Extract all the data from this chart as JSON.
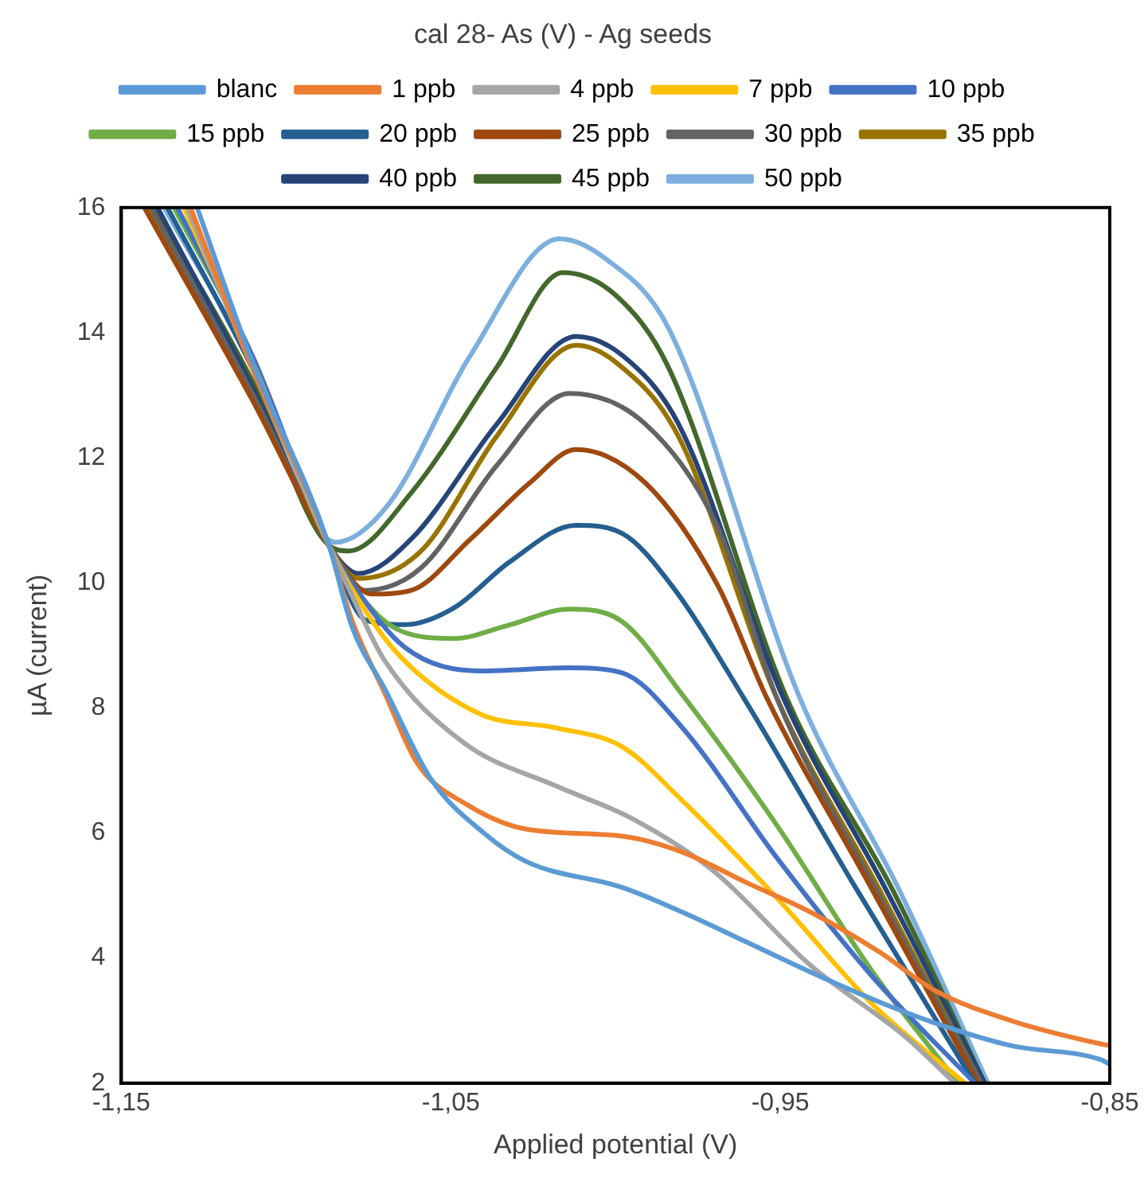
{
  "chart_data": {
    "type": "line",
    "title": "cal 28- As (V) - Ag seeds",
    "xlabel": "Applied potential (V)",
    "ylabel": "µA (current)",
    "xlim": [
      -1.15,
      -0.85
    ],
    "xticks": [
      {
        "value": -1.15,
        "label": "-1,15"
      },
      {
        "value": -1.05,
        "label": "-1,05"
      },
      {
        "value": -0.95,
        "label": "-0,95"
      },
      {
        "value": -0.85,
        "label": "-0,85"
      }
    ],
    "ylim": [
      2,
      16
    ],
    "yticks": [
      2,
      4,
      6,
      8,
      10,
      12,
      14,
      16
    ],
    "grid": false,
    "legend": "top",
    "marker": "none",
    "line_style": "solid",
    "series": [
      {
        "name": "blanc",
        "color": "#5b9bd5",
        "x": [
          -1.127,
          -1.11,
          -1.087,
          -1.08,
          -1.07,
          -1.056,
          -1.04,
          -1.027,
          -0.998,
          -0.98,
          -0.96,
          -0.941,
          -0.92,
          -0.903,
          -0.88,
          -0.853,
          -0.85
        ],
        "values": [
          16,
          13.5,
          10.6,
          9.3,
          8.3,
          6.86,
          6.0,
          5.54,
          5.13,
          4.74,
          4.25,
          3.78,
          3.3,
          2.96,
          2.6,
          2.38,
          2.3
        ]
      },
      {
        "name": "1 ppb",
        "color": "#ed7d31",
        "x": [
          -1.129,
          -1.11,
          -1.087,
          -1.08,
          -1.07,
          -1.06,
          -1.045,
          -1.027,
          -0.998,
          -0.98,
          -0.96,
          -0.941,
          -0.92,
          -0.903,
          -0.88,
          -0.853,
          -0.85
        ],
        "values": [
          16,
          13.4,
          10.6,
          9.4,
          8.23,
          7.1,
          6.45,
          6.06,
          5.95,
          5.7,
          5.2,
          4.74,
          4.1,
          3.48,
          3.0,
          2.63,
          2.6
        ]
      },
      {
        "name": "4 ppb",
        "color": "#a5a5a5",
        "x": [
          -1.13,
          -1.11,
          -1.087,
          -1.08,
          -1.07,
          -1.046,
          -1.018,
          -0.995,
          -0.97,
          -0.941,
          -0.912,
          -0.897
        ],
        "values": [
          16,
          13.4,
          10.6,
          9.8,
          8.75,
          7.44,
          6.75,
          6.23,
          5.38,
          3.89,
          2.74,
          2
        ]
      },
      {
        "name": "7 ppb",
        "color": "#ffc000",
        "x": [
          -1.131,
          -1.11,
          -1.087,
          -1.08,
          -1.066,
          -1.041,
          -1.018,
          -0.998,
          -0.98,
          -0.951,
          -0.922,
          -0.894
        ],
        "values": [
          16,
          13.5,
          10.6,
          9.9,
          8.86,
          7.9,
          7.68,
          7.38,
          6.53,
          4.96,
          3.26,
          2
        ]
      },
      {
        "name": "10 ppb",
        "color": "#4472c4",
        "x": [
          -1.133,
          -1.11,
          -1.087,
          -1.08,
          -1.064,
          -1.041,
          -1.014,
          -0.998,
          -0.98,
          -0.951,
          -0.922,
          -0.891
        ],
        "values": [
          16,
          13.6,
          10.6,
          10.0,
          8.97,
          8.59,
          8.64,
          8.56,
          7.7,
          5.6,
          3.7,
          2
        ]
      },
      {
        "name": "15 ppb",
        "color": "#70ad47",
        "x": [
          -1.134,
          -1.11,
          -1.087,
          -1.066,
          -1.049,
          -1.032,
          -1.014,
          -0.998,
          -0.98,
          -0.951,
          -0.922,
          -0.896
        ],
        "values": [
          16,
          13.6,
          10.6,
          9.25,
          9.11,
          9.33,
          9.58,
          9.38,
          8.23,
          6.12,
          3.78,
          2
        ]
      },
      {
        "name": "20 ppb",
        "color": "#255e91",
        "x": [
          -1.136,
          -1.11,
          -1.087,
          -1.076,
          -1.064,
          -1.049,
          -1.032,
          -1.012,
          -0.998,
          -0.983,
          -0.961,
          -0.928,
          -0.891
        ],
        "values": [
          16,
          13.4,
          10.6,
          9.41,
          9.33,
          9.6,
          10.34,
          10.92,
          10.79,
          9.96,
          8.15,
          5.2,
          2
        ]
      },
      {
        "name": "25 ppb",
        "color": "#9e480e",
        "x": [
          -1.143,
          -1.11,
          -1.087,
          -1.074,
          -1.062,
          -1.044,
          -1.026,
          -1.012,
          -0.991,
          -0.969,
          -0.954,
          -0.923,
          -0.89
        ],
        "values": [
          16,
          12.9,
          10.6,
          9.82,
          9.88,
          10.7,
          11.6,
          12.13,
          11.6,
          9.96,
          8.15,
          5.18,
          2
        ]
      },
      {
        "name": "30 ppb",
        "color": "#636363",
        "x": [
          -1.141,
          -1.11,
          -1.087,
          -1.076,
          -1.059,
          -1.036,
          -1.014,
          -0.991,
          -0.969,
          -0.951,
          -0.921,
          -0.889
        ],
        "values": [
          16,
          13.0,
          10.6,
          9.88,
          10.24,
          11.88,
          13.03,
          12.54,
          10.89,
          8.15,
          5.1,
          2
        ]
      },
      {
        "name": "35 ppb",
        "color": "#997300",
        "x": [
          -1.142,
          -1.11,
          -1.087,
          -1.078,
          -1.059,
          -1.036,
          -1.012,
          -1.0,
          -0.981,
          -0.951,
          -0.92,
          -0.889
        ],
        "values": [
          16,
          13.0,
          10.6,
          10.07,
          10.51,
          12.35,
          13.8,
          13.53,
          12.35,
          8.15,
          5.1,
          2
        ]
      },
      {
        "name": "40 ppb",
        "color": "#264478",
        "x": [
          -1.139,
          -1.11,
          -1.087,
          -1.078,
          -1.062,
          -1.036,
          -1.012,
          -0.998,
          -0.981,
          -0.949,
          -0.918,
          -0.888
        ],
        "values": [
          16,
          13.1,
          10.6,
          10.15,
          10.7,
          12.54,
          13.94,
          13.64,
          12.55,
          8.15,
          5.1,
          2
        ]
      },
      {
        "name": "45 ppb",
        "color": "#43682b",
        "x": [
          -1.14,
          -1.11,
          -1.087,
          -1.081,
          -1.062,
          -1.036,
          -1.016,
          -1.0,
          -0.984,
          -0.948,
          -0.916,
          -0.888
        ],
        "values": [
          16,
          13.2,
          10.6,
          10.51,
          11.44,
          13.45,
          14.96,
          14.6,
          13.45,
          8.15,
          5.1,
          2
        ]
      },
      {
        "name": "50 ppb",
        "color": "#7cafdd",
        "x": [
          -1.137,
          -1.11,
          -1.095,
          -1.085,
          -1.069,
          -1.044,
          -1.017,
          -1.003,
          -0.984,
          -0.944,
          -0.914,
          -0.887
        ],
        "values": [
          16,
          13.4,
          11.3,
          10.65,
          11.25,
          13.64,
          15.5,
          15.18,
          14.08,
          8.15,
          5.1,
          2
        ]
      }
    ]
  }
}
